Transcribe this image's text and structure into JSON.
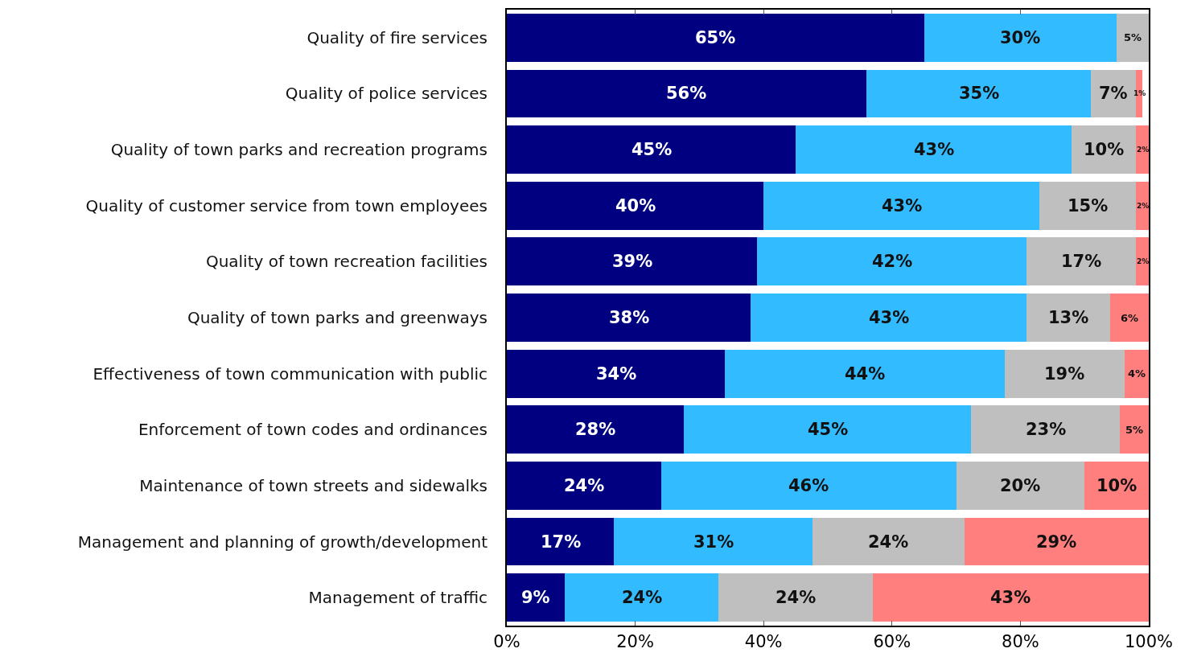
{
  "chart_data": {
    "type": "bar",
    "orientation": "horizontal",
    "stacked": true,
    "categories": [
      "Quality of fire services",
      "Quality of police services",
      "Quality of town parks and recreation programs",
      "Quality of customer service from town employees",
      "Quality of town recreation facilities",
      "Quality of town parks and greenways",
      "Effectiveness of town communication with public",
      "Enforcement of town codes and ordinances",
      "Maintenance of town streets and sidewalks",
      "Management and planning of growth/development",
      "Management of traffic"
    ],
    "series": [
      {
        "color": "#000080",
        "values": [
          65,
          56,
          45,
          40,
          39,
          38,
          34,
          27.6,
          24,
          16.7,
          9
        ],
        "value_labels": [
          "65%",
          "56%",
          "45%",
          "40%",
          "39%",
          "38%",
          "34%",
          "28%",
          "24%",
          "17%",
          "9%"
        ]
      },
      {
        "color": "#33bbff",
        "values": [
          30,
          35,
          43,
          43,
          42,
          43,
          43.6,
          44.7,
          46,
          30.9,
          24
        ],
        "value_labels": [
          "30%",
          "35%",
          "43%",
          "43%",
          "42%",
          "43%",
          "44%",
          "45%",
          "46%",
          "31%",
          "24%"
        ]
      },
      {
        "color": "#bfbfbf",
        "values": [
          5,
          7,
          10,
          15,
          17,
          13,
          18.6,
          23.2,
          20,
          23.7,
          24
        ],
        "value_labels": [
          "5%",
          "7%",
          "10%",
          "15%",
          "17%",
          "13%",
          "19%",
          "23%",
          "20%",
          "24%",
          "24%"
        ]
      },
      {
        "color": "#ff7f7f",
        "values": [
          null,
          1,
          2,
          2,
          2,
          6,
          3.8,
          4.5,
          10,
          28.7,
          43
        ],
        "value_labels": [
          null,
          "1%",
          "2%",
          "2%",
          "2%",
          "6%",
          "4%",
          "5%",
          "10%",
          "29%",
          "43%"
        ]
      }
    ],
    "xlim": [
      0,
      100
    ],
    "xticks": [
      {
        "value": 0,
        "label": "0%"
      },
      {
        "value": 20,
        "label": "20%"
      },
      {
        "value": 40,
        "label": "40%"
      },
      {
        "value": 60,
        "label": "60%"
      },
      {
        "value": 80,
        "label": "80%"
      },
      {
        "value": 100,
        "label": "100%"
      }
    ],
    "tick_labels": "xy"
  }
}
